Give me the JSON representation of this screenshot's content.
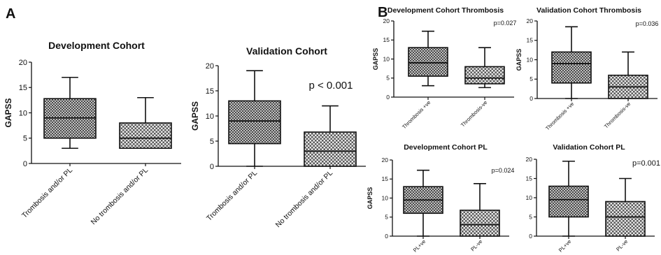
{
  "colors": {
    "box_dark": "#8a8a8a",
    "box_light": "#c9c9c9",
    "ink": "#111111"
  },
  "panel_labels": {
    "a": "A",
    "b": "B"
  },
  "chart_data": [
    {
      "id": "dev_a",
      "type": "box",
      "title": "Development Cohort",
      "ylabel": "GAPSS",
      "ylim": [
        0,
        20
      ],
      "yticks": [
        "0",
        "5",
        "10",
        "15",
        "20"
      ],
      "categories": [
        "Trombosis and/or PL",
        "No trombosis and/or PL"
      ],
      "boxes": [
        {
          "min": 3,
          "q1": 5,
          "median": 9,
          "q3": 12.8,
          "max": 17
        },
        {
          "min": 3,
          "q1": 3,
          "median": 5,
          "q3": 8,
          "max": 13
        }
      ],
      "annotation": ""
    },
    {
      "id": "val_a",
      "type": "box",
      "title": "Validation Cohort",
      "ylabel": "GAPSS",
      "ylim": [
        0,
        20
      ],
      "yticks": [
        "0",
        "5",
        "10",
        "15",
        "20"
      ],
      "categories": [
        "Trombosis and/or PL",
        "No trombosis and/or PL"
      ],
      "boxes": [
        {
          "min": 0,
          "q1": 4.5,
          "median": 9,
          "q3": 13,
          "max": 19
        },
        {
          "min": 0,
          "q1": 0,
          "median": 3,
          "q3": 6.8,
          "max": 12
        }
      ],
      "annotation": "p < 0.001"
    },
    {
      "id": "dev_thr",
      "type": "box",
      "title": "Development Cohort Thrombosis",
      "ylabel": "GAPSS",
      "ylim": [
        0,
        20
      ],
      "yticks": [
        "0",
        "5",
        "10",
        "15",
        "20"
      ],
      "categories": [
        "Thrombosis +ve",
        "Thrombosis-ve"
      ],
      "boxes": [
        {
          "min": 3,
          "q1": 5.5,
          "median": 9,
          "q3": 13,
          "max": 17.3
        },
        {
          "min": 2.5,
          "q1": 3.5,
          "median": 5,
          "q3": 8,
          "max": 13
        }
      ],
      "annotation": "p=0.027"
    },
    {
      "id": "val_thr",
      "type": "box",
      "title": "Validation Cohort Thrombosis",
      "ylabel": "GAPSS",
      "ylim": [
        0,
        20
      ],
      "yticks": [
        "0",
        "5",
        "10",
        "15",
        "20"
      ],
      "categories": [
        "Thrombosis +ve",
        "Thrombosis-ve"
      ],
      "boxes": [
        {
          "min": 0,
          "q1": 4,
          "median": 9,
          "q3": 12,
          "max": 18.5
        },
        {
          "min": 0,
          "q1": 0,
          "median": 3,
          "q3": 6,
          "max": 12
        }
      ],
      "annotation": "p=0.036"
    },
    {
      "id": "dev_pl",
      "type": "box",
      "title": "Development Cohort PL",
      "ylabel": "GAPSS",
      "ylim": [
        0,
        20
      ],
      "yticks": [
        "0",
        "5",
        "10",
        "15",
        "20"
      ],
      "categories": [
        "PL+ve",
        "PL-ve"
      ],
      "boxes": [
        {
          "min": 0,
          "q1": 6,
          "median": 9.5,
          "q3": 13,
          "max": 17.3
        },
        {
          "min": 0,
          "q1": 0,
          "median": 3,
          "q3": 6.8,
          "max": 13.8
        }
      ],
      "annotation": "p=0.024"
    },
    {
      "id": "val_pl",
      "type": "box",
      "title": "Validation Cohort PL",
      "ylabel": "",
      "ylim": [
        0,
        20
      ],
      "yticks": [
        "0",
        "5",
        "10",
        "15",
        "20"
      ],
      "categories": [
        "PL+ve",
        "PL-ve"
      ],
      "boxes": [
        {
          "min": 0,
          "q1": 5,
          "median": 9.5,
          "q3": 13,
          "max": 19.5
        },
        {
          "min": 0,
          "q1": 0,
          "median": 5,
          "q3": 9,
          "max": 15
        }
      ],
      "annotation": "p=0.001"
    }
  ]
}
